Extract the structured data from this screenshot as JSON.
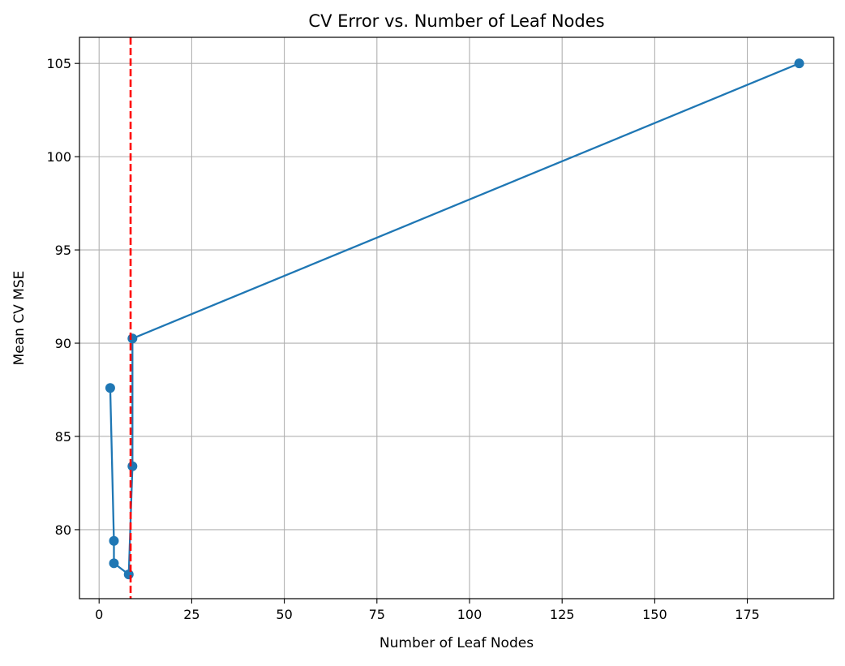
{
  "chart_data": {
    "type": "line",
    "title": "CV Error vs. Number of Leaf Nodes",
    "xlabel": "Number of Leaf Nodes",
    "ylabel": "Mean CV MSE",
    "xlim": [
      -5.3,
      198.3
    ],
    "ylim": [
      76.3,
      106.4
    ],
    "xticks": [
      0,
      25,
      50,
      75,
      100,
      125,
      150,
      175
    ],
    "yticks": [
      80,
      85,
      90,
      95,
      100,
      105
    ],
    "grid": true,
    "series": [
      {
        "color": "#1f77b4",
        "marker": "circle",
        "points": [
          {
            "x": 3,
            "y": 87.6
          },
          {
            "x": 4,
            "y": 79.4
          },
          {
            "x": 4,
            "y": 78.2
          },
          {
            "x": 8,
            "y": 77.6
          },
          {
            "x": 9,
            "y": 83.4
          },
          {
            "x": 9,
            "y": 90.25
          },
          {
            "x": 189,
            "y": 105.0
          }
        ]
      }
    ],
    "reference_lines": [
      {
        "orientation": "vertical",
        "x": 8.5,
        "color": "#ff0000",
        "style": "dashed"
      }
    ]
  }
}
